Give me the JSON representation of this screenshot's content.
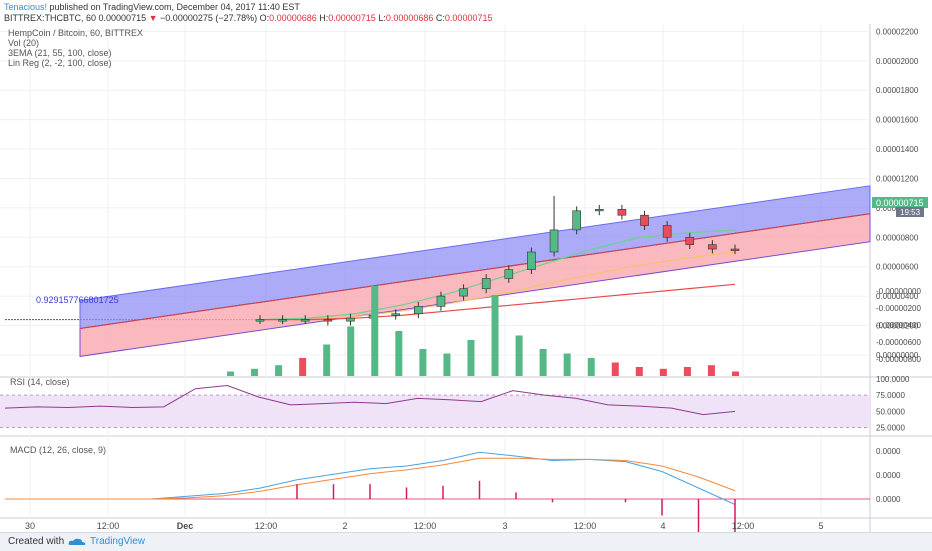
{
  "header": {
    "author": "Tenacious!",
    "published_text": "published on TradingView.com, December 04, 2017 11:40 EST",
    "symbol": "BITTREX:THCBTC, 60",
    "last": "0.00000715",
    "down_marker": "▼",
    "change": "−0.00000275 (−27.78%)",
    "o_label": "O:",
    "o_value": "0.00000686",
    "h_label": "H:",
    "h_value": "0.00000715",
    "l_label": "L:",
    "l_value": "0.00000686",
    "c_label": "C:",
    "c_value": "0.00000715"
  },
  "legend": {
    "main": "HempCoin / Bitcoin, 60, BITTREX",
    "vol": "Vol (20)",
    "ema": "3EMA (21, 55, 100, close)",
    "linreg": "Lin Reg (2, -2, 100, close)"
  },
  "price_tag": "0.00000715",
  "time_tag": "19:53",
  "linreg_annotation": "0.929157766801725",
  "rsi_title": "RSI (14, close)",
  "macd_title": "MACD (12, 26, close, 9)",
  "footer": {
    "created": "Created with",
    "brand": "TradingView"
  },
  "colors": {
    "up": "#53b987",
    "down": "#eb4d5c",
    "channel_upper": "#8f8ff5",
    "channel_lower": "#f7a7ae",
    "ema_fast": "#6fd18a",
    "ema_mid": "#f5c36b",
    "ema_slow": "#e84a4a",
    "rsi": "#8e3a8e",
    "macd": "#4aa3df",
    "signal": "#f58a3c",
    "hist": "#d81b60"
  },
  "chart_data": [
    {
      "type": "candlestick",
      "title": "HempCoin / Bitcoin, 60, BITTREX",
      "price_axis_ticks": [
        "0.00002200",
        "0.00002000",
        "0.00001800",
        "0.00001600",
        "0.00001400",
        "0.00001200",
        "0.00001000",
        "0.00000800",
        "0.00000600",
        "0.00000400",
        "0.00000200",
        "0.00000000"
      ],
      "ylim": [
        -1.5e-06,
        2.25e-05
      ],
      "x_ticks": [
        "30",
        "12:00",
        "Dec",
        "12:00",
        "2",
        "12:00",
        "3",
        "12:00",
        "4",
        "12:00",
        "5"
      ],
      "series_close_approx": [
        2.4e-06,
        2.4e-06,
        2.4e-06,
        2.3e-06,
        2.5e-06,
        2.7e-06,
        2.8e-06,
        3.3e-06,
        4e-06,
        4.5e-06,
        5.2e-06,
        5.8e-06,
        7e-06,
        8.5e-06,
        9.8e-06,
        9.9e-06,
        9.5e-06,
        8.8e-06,
        8e-06,
        7.5e-06,
        7.2e-06,
        7.15e-06
      ],
      "last_close": 7.15e-06
    },
    {
      "type": "bar",
      "title": "Vol (20)",
      "volume_axis_ticks": [
        "0.00000000",
        "0.00000200",
        "0.00000400",
        "0.00000600",
        "0.00000800"
      ],
      "volume_relative": [
        0.05,
        0.08,
        0.12,
        0.2,
        0.35,
        0.55,
        1.0,
        0.5,
        0.3,
        0.25,
        0.4,
        0.9,
        0.45,
        0.3,
        0.25,
        0.2,
        0.15,
        0.1,
        0.08,
        0.1,
        0.12,
        0.05
      ]
    },
    {
      "type": "line",
      "title": "RSI (14, close)",
      "yticks": [
        "100.0000",
        "75.0000",
        "50.0000",
        "25.0000"
      ],
      "ylim": [
        15,
        100
      ],
      "values": [
        55,
        57,
        56,
        58,
        56,
        57,
        85,
        90,
        72,
        60,
        62,
        64,
        62,
        70,
        68,
        65,
        82,
        75,
        70,
        60,
        58,
        55,
        45,
        50
      ]
    },
    {
      "type": "line",
      "title": "MACD (12, 26, close, 9)",
      "yticks": [
        "0.0000",
        "0.0000",
        "0.0000"
      ],
      "series": [
        {
          "values": [
            0,
            0,
            0,
            0,
            0,
            0.05,
            0.1,
            0.2,
            0.35,
            0.45,
            0.55,
            0.6,
            0.7,
            0.85,
            0.78,
            0.7,
            0.72,
            0.68,
            0.5,
            0.2,
            -0.1
          ]
        },
        {
          "values": [
            0,
            0,
            0,
            0,
            0,
            0.02,
            0.06,
            0.14,
            0.26,
            0.36,
            0.46,
            0.53,
            0.62,
            0.74,
            0.74,
            0.72,
            0.72,
            0.7,
            0.6,
            0.4,
            0.15
          ]
        }
      ]
    }
  ]
}
